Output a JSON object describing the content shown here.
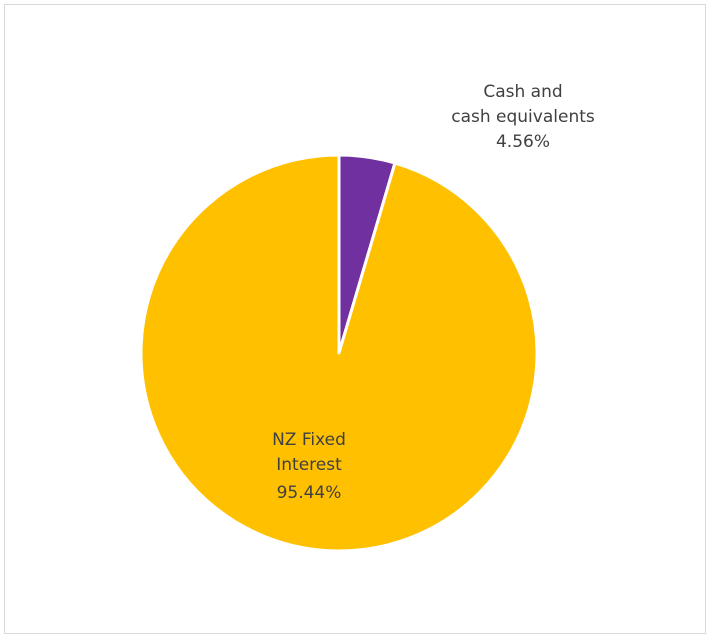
{
  "chart_data": {
    "type": "pie",
    "slices": [
      {
        "label_lines": [
          "Cash and",
          "cash equivalents"
        ],
        "value": 4.56,
        "value_label": "4.56%",
        "color": "#7030a0"
      },
      {
        "label_lines": [
          "NZ Fixed",
          "Interest"
        ],
        "value": 95.44,
        "value_label": "95.44%",
        "color": "#ffc000"
      }
    ],
    "start_angle_deg": 0,
    "direction": "clockwise",
    "legend": "none",
    "data_labels": "category and percentage"
  }
}
